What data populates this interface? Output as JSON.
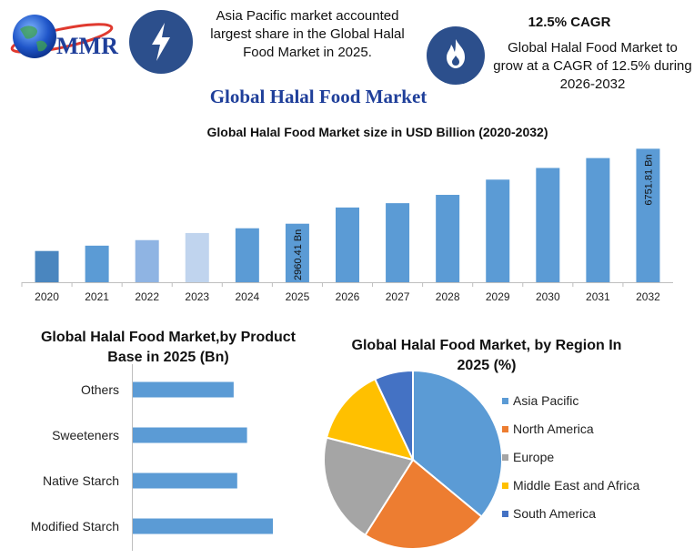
{
  "brand": {
    "logo_text": "MMR"
  },
  "header": {
    "callout_left": "Asia Pacific market accounted largest share in the Global Halal Food Market in 2025.",
    "cagr_title": "12.5% CAGR",
    "callout_right": "Global Halal Food Market to grow at a CAGR of 12.5% during 2026-2032",
    "main_title": "Global Halal Food Market"
  },
  "icons": {
    "left": "lightning-icon",
    "right": "flame-icon",
    "logo": "globe-icon"
  },
  "colors": {
    "title_blue": "#1f3f9a",
    "icon_bg": "#2c4f8c",
    "bar_main": "#5b9bd5",
    "asia_pacific": "#5b9bd5",
    "north_america": "#ed7d31",
    "europe": "#a5a5a5",
    "middle_east_africa": "#ffc000",
    "south_america": "#4472c4"
  },
  "chart_data": [
    {
      "type": "bar",
      "title": "Global Halal Food Market size in USD Billion (2020-2032)",
      "categories": [
        "2020",
        "2021",
        "2022",
        "2023",
        "2024",
        "2025",
        "2026",
        "2027",
        "2028",
        "2029",
        "2030",
        "2031",
        "2032"
      ],
      "values": [
        1580,
        1850,
        2130,
        2490,
        2730,
        2960.41,
        3780,
        4000,
        4420,
        5190,
        5780,
        6280,
        6751.81
      ],
      "bar_colors": [
        "#4a86bf",
        "#5b9bd5",
        "#8fb4e3",
        "#c0d4ee",
        "#5b9bd5",
        "#5b9bd5",
        "#5b9bd5",
        "#5b9bd5",
        "#5b9bd5",
        "#5b9bd5",
        "#5b9bd5",
        "#5b9bd5",
        "#5b9bd5"
      ],
      "data_labels": {
        "2025": "2960.41 Bn",
        "2032": "6751.81 Bn"
      },
      "ylim": [
        0,
        7000
      ],
      "grid": false
    },
    {
      "type": "bar",
      "orientation": "horizontal",
      "title": "Global Halal Food Market,by Product Base in 2025 (Bn)",
      "categories": [
        "Others",
        "Sweeteners",
        "Native Starch",
        "Modified Starch"
      ],
      "values": [
        113,
        128,
        117,
        157
      ],
      "xlim": [
        0,
        160
      ],
      "grid": false
    },
    {
      "type": "pie",
      "title": "Global Halal Food Market, by Region In 2025 (%)",
      "labels": [
        "Asia Pacific",
        "North America",
        "Europe",
        "Middle East and Africa",
        "South America"
      ],
      "values": [
        36,
        23,
        20,
        14,
        7
      ],
      "legend_position": "right"
    }
  ]
}
